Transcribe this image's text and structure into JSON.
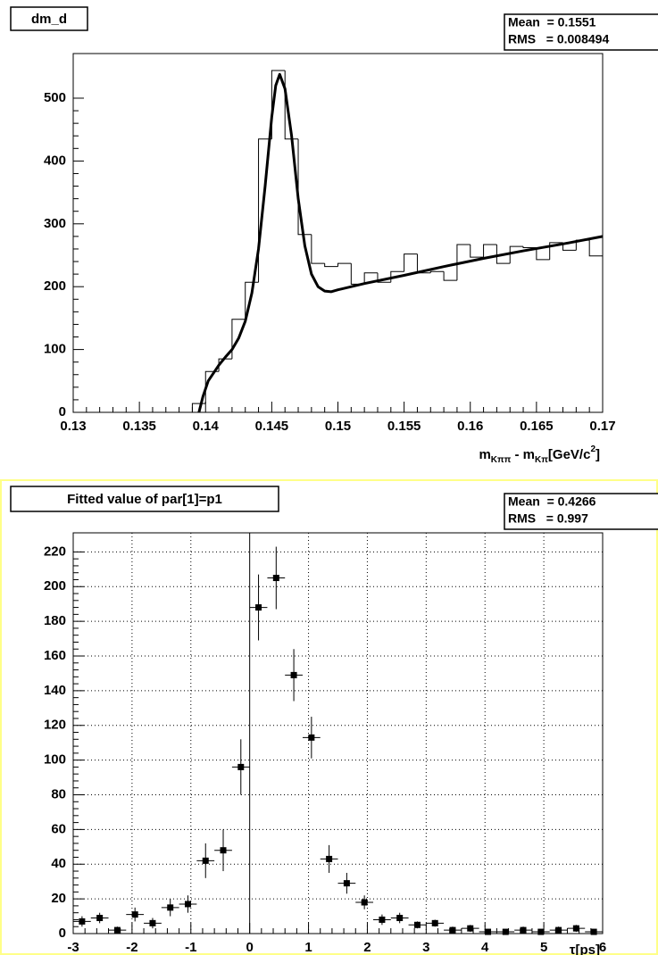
{
  "chart_data": [
    {
      "type": "histogram",
      "title": "dm_d",
      "stats": [
        "Mean  = 0.1551",
        "RMS   = 0.008494"
      ],
      "bins": [
        0.139,
        0.14,
        0.141,
        0.142,
        0.143,
        0.144,
        0.145,
        0.146,
        0.147,
        0.148,
        0.149,
        0.15,
        0.151,
        0.152,
        0.153,
        0.154,
        0.155,
        0.156,
        0.157,
        0.158,
        0.159,
        0.16,
        0.161,
        0.162,
        0.163,
        0.164,
        0.165,
        0.166,
        0.167,
        0.168,
        0.169,
        0.17
      ],
      "values": [
        14,
        65,
        85,
        148,
        207,
        435,
        544,
        435,
        283,
        237,
        232,
        237,
        204,
        222,
        207,
        224,
        252,
        222,
        224,
        210,
        267,
        247,
        267,
        237,
        264,
        262,
        243,
        270,
        258,
        274,
        249
      ],
      "fit": {
        "x": [
          0.1395,
          0.1398,
          0.1402,
          0.141,
          0.1415,
          0.142,
          0.1425,
          0.143,
          0.1435,
          0.144,
          0.1445,
          0.145,
          0.1453,
          0.1456,
          0.146,
          0.1465,
          0.147,
          0.1475,
          0.148,
          0.1485,
          0.149,
          0.1495,
          0.15,
          0.152,
          0.155,
          0.158,
          0.161,
          0.164,
          0.167,
          0.17
        ],
        "values": [
          0,
          25,
          50,
          75,
          88,
          100,
          118,
          145,
          190,
          260,
          360,
          470,
          520,
          538,
          515,
          440,
          340,
          265,
          220,
          200,
          193,
          192,
          195,
          205,
          218,
          232,
          245,
          257,
          268,
          280
        ]
      },
      "color": "#000000",
      "x_label": [
        "m",
        "Kππ",
        " - m",
        "Kπ",
        "[GeV/c",
        "2",
        "]"
      ],
      "xlim": [
        0.13,
        0.17
      ],
      "xticks": [
        0.13,
        0.135,
        0.14,
        0.145,
        0.15,
        0.155,
        0.16,
        0.165,
        0.17
      ],
      "ylim": [
        0,
        571
      ],
      "yticks": [
        0,
        100,
        200,
        300,
        400,
        500
      ],
      "grid": false
    },
    {
      "type": "errorbar",
      "title": "Fitted value of par[1]=p1",
      "stats": [
        "Mean  = 0.4266",
        "RMS   = 0.997"
      ],
      "x": [
        -2.85,
        -2.55,
        -2.25,
        -1.95,
        -1.65,
        -1.35,
        -1.05,
        -0.75,
        -0.45,
        -0.15,
        0.15,
        0.45,
        0.75,
        1.05,
        1.35,
        1.65,
        1.95,
        2.25,
        2.55,
        2.85,
        3.15,
        3.45,
        3.75,
        4.05,
        4.35,
        4.65,
        4.95,
        5.25,
        5.55,
        5.85
      ],
      "values": [
        7,
        9,
        2,
        11,
        6,
        15,
        17,
        42,
        48,
        96,
        188,
        205,
        149,
        113,
        43,
        29,
        18,
        8,
        9,
        5,
        6,
        2,
        3,
        1,
        1,
        2,
        1,
        2,
        3,
        1
      ],
      "errors": [
        3,
        3,
        2,
        4,
        3,
        5,
        5,
        10,
        12,
        16,
        19,
        18,
        15,
        12,
        8,
        6,
        4,
        3,
        3,
        2,
        2,
        2,
        2,
        1,
        1,
        2,
        1,
        2,
        2,
        1
      ],
      "x_error": 0.15,
      "color": "#000000",
      "x_label": "τ[ps]",
      "xlim": [
        -3,
        6
      ],
      "xticks": [
        -3,
        -2,
        -1,
        0,
        1,
        2,
        3,
        4,
        5,
        6
      ],
      "ylim": [
        0,
        231
      ],
      "yticks": [
        0,
        20,
        40,
        60,
        80,
        100,
        120,
        140,
        160,
        180,
        200,
        220
      ],
      "grid": true
    }
  ]
}
